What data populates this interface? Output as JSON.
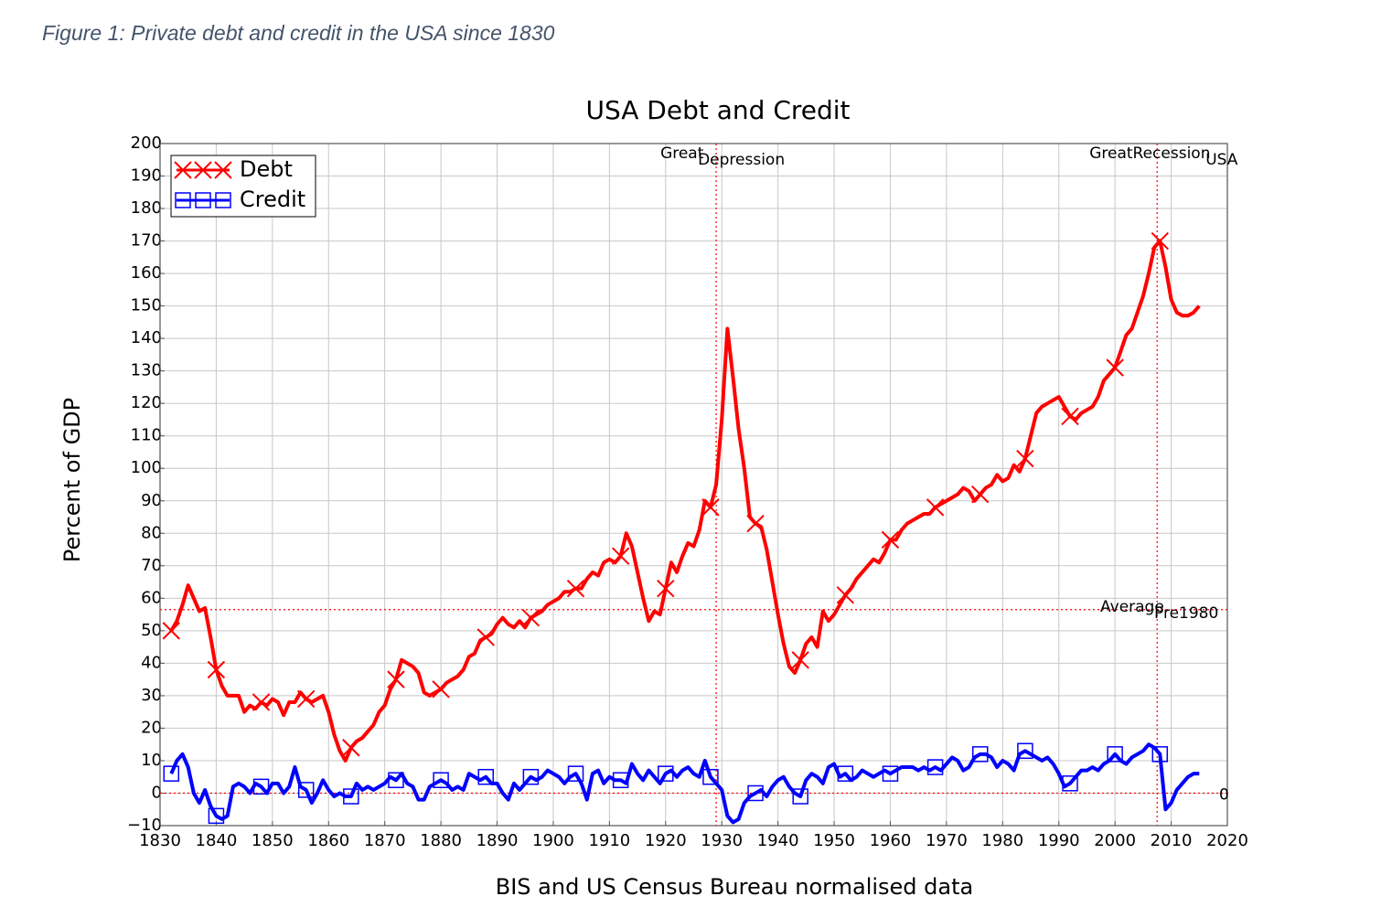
{
  "caption": "Figure 1: Private debt and credit in the USA since 1830",
  "chart_data": {
    "type": "line",
    "title": "USA Debt and Credit",
    "xlabel": "BIS and US Census Bureau normalised data",
    "ylabel": "Percent of GDP",
    "x": [
      1832,
      1833,
      1834,
      1835,
      1836,
      1837,
      1838,
      1839,
      1840,
      1841,
      1842,
      1843,
      1844,
      1845,
      1846,
      1847,
      1848,
      1849,
      1850,
      1851,
      1852,
      1853,
      1854,
      1855,
      1856,
      1857,
      1858,
      1859,
      1860,
      1861,
      1862,
      1863,
      1864,
      1865,
      1866,
      1867,
      1868,
      1869,
      1870,
      1871,
      1872,
      1873,
      1874,
      1875,
      1876,
      1877,
      1878,
      1879,
      1880,
      1881,
      1882,
      1883,
      1884,
      1885,
      1886,
      1887,
      1888,
      1889,
      1890,
      1891,
      1892,
      1893,
      1894,
      1895,
      1896,
      1897,
      1898,
      1899,
      1900,
      1901,
      1902,
      1903,
      1904,
      1905,
      1906,
      1907,
      1908,
      1909,
      1910,
      1911,
      1912,
      1913,
      1914,
      1915,
      1916,
      1917,
      1918,
      1919,
      1920,
      1921,
      1922,
      1923,
      1924,
      1925,
      1926,
      1927,
      1928,
      1929,
      1930,
      1931,
      1932,
      1933,
      1934,
      1935,
      1936,
      1937,
      1938,
      1939,
      1940,
      1941,
      1942,
      1943,
      1944,
      1945,
      1946,
      1947,
      1948,
      1949,
      1950,
      1951,
      1952,
      1953,
      1954,
      1955,
      1956,
      1957,
      1958,
      1959,
      1960,
      1961,
      1962,
      1963,
      1964,
      1965,
      1966,
      1967,
      1968,
      1969,
      1970,
      1971,
      1972,
      1973,
      1974,
      1975,
      1976,
      1977,
      1978,
      1979,
      1980,
      1981,
      1982,
      1983,
      1984,
      1985,
      1986,
      1987,
      1988,
      1989,
      1990,
      1991,
      1992,
      1993,
      1994,
      1995,
      1996,
      1997,
      1998,
      1999,
      2000,
      2001,
      2002,
      2003,
      2004,
      2005,
      2006,
      2007,
      2008,
      2009,
      2010,
      2011,
      2012,
      2013,
      2014,
      2015
    ],
    "series": [
      {
        "name": "Debt",
        "color": "#ff0000",
        "marker": "x",
        "values": [
          50,
          53,
          58,
          64,
          60,
          56,
          57,
          48,
          38,
          33,
          30,
          30,
          30,
          25,
          27,
          26,
          28,
          27,
          29,
          28,
          24,
          28,
          28,
          31,
          29,
          28,
          29,
          30,
          25,
          18,
          13,
          10,
          14,
          16,
          17,
          19,
          21,
          25,
          27,
          32,
          35,
          41,
          40,
          39,
          37,
          31,
          30,
          31,
          32,
          34,
          35,
          36,
          38,
          42,
          43,
          47,
          48,
          49,
          52,
          54,
          52,
          51,
          53,
          51,
          54,
          55,
          56,
          58,
          59,
          60,
          62,
          62,
          63,
          63,
          66,
          68,
          67,
          71,
          72,
          71,
          73,
          80,
          76,
          68,
          60,
          53,
          56,
          55,
          63,
          71,
          68,
          73,
          77,
          76,
          81,
          90,
          88,
          95,
          115,
          143,
          128,
          112,
          100,
          85,
          83,
          82,
          75,
          65,
          55,
          46,
          39,
          37,
          41,
          46,
          48,
          45,
          56,
          53,
          55,
          58,
          61,
          63,
          66,
          68,
          70,
          72,
          71,
          74,
          78,
          78,
          81,
          83,
          84,
          85,
          86,
          86,
          88,
          89,
          90,
          91,
          92,
          94,
          93,
          90,
          92,
          94,
          95,
          98,
          96,
          97,
          101,
          99,
          103,
          110,
          117,
          119,
          120,
          121,
          122,
          119,
          116,
          115,
          117,
          118,
          119,
          122,
          127,
          129,
          131,
          136,
          141,
          143,
          148,
          153,
          160,
          168,
          170,
          162,
          152,
          148,
          147,
          147,
          148,
          150
        ]
      },
      {
        "name": "Credit",
        "color": "#0000ff",
        "marker": "square",
        "values": [
          6,
          10,
          12,
          8,
          0,
          -3,
          1,
          -4,
          -7,
          -8,
          -7,
          2,
          3,
          2,
          0,
          3,
          2,
          0,
          3,
          3,
          0,
          2,
          8,
          2,
          1,
          -3,
          0,
          4,
          1,
          -1,
          0,
          -1,
          -1,
          3,
          1,
          2,
          1,
          2,
          3,
          5,
          4,
          6,
          3,
          2,
          -2,
          -2,
          2,
          3,
          4,
          3,
          1,
          2,
          1,
          6,
          5,
          4,
          5,
          3,
          3,
          0,
          -2,
          3,
          1,
          3,
          5,
          4,
          5,
          7,
          6,
          5,
          3,
          5,
          6,
          3,
          -2,
          6,
          7,
          3,
          5,
          4,
          4,
          3,
          9,
          6,
          4,
          7,
          5,
          3,
          6,
          7,
          5,
          7,
          8,
          6,
          5,
          10,
          5,
          3,
          1,
          -7,
          -9,
          -8,
          -3,
          -1,
          0,
          1,
          -1,
          2,
          4,
          5,
          2,
          0,
          -1,
          4,
          6,
          5,
          3,
          8,
          9,
          5,
          6,
          4,
          5,
          7,
          6,
          5,
          6,
          7,
          6,
          7,
          8,
          8,
          8,
          7,
          8,
          7,
          8,
          7,
          9,
          11,
          10,
          7,
          8,
          11,
          12,
          12,
          11,
          8,
          10,
          9,
          7,
          12,
          13,
          12,
          11,
          10,
          11,
          9,
          6,
          2,
          3,
          5,
          7,
          7,
          8,
          7,
          9,
          10,
          12,
          10,
          9,
          11,
          12,
          13,
          15,
          14,
          12,
          -5,
          -3,
          1,
          3,
          5,
          6,
          6
        ]
      }
    ],
    "xlim": [
      1830,
      2020
    ],
    "xticks": [
      1830,
      1840,
      1850,
      1860,
      1870,
      1880,
      1890,
      1900,
      1910,
      1920,
      1930,
      1940,
      1950,
      1960,
      1970,
      1980,
      1990,
      2000,
      2010,
      2020
    ],
    "ylim": [
      -10,
      200
    ],
    "yticks": [
      {
        "value": -10,
        "label": "−10"
      },
      0,
      10,
      20,
      30,
      40,
      50,
      60,
      70,
      80,
      90,
      100,
      110,
      120,
      130,
      140,
      150,
      160,
      170,
      180,
      190,
      200
    ],
    "grid": true,
    "legend": "upper left",
    "reference_lines": [
      {
        "axis": "x",
        "value": 1929,
        "color": "#ff0000",
        "labels": [
          "Great",
          "Depression"
        ]
      },
      {
        "axis": "x",
        "value": 2007.5,
        "color": "#ff0000",
        "labels": [
          "GreatRecession",
          "USA"
        ]
      },
      {
        "axis": "y",
        "value": 56.5,
        "color": "#ff0000",
        "labels": [
          "Average",
          "Pre1980"
        ]
      },
      {
        "axis": "y",
        "value": 0,
        "color": "#ff0000",
        "labels": [
          "0"
        ]
      }
    ]
  }
}
